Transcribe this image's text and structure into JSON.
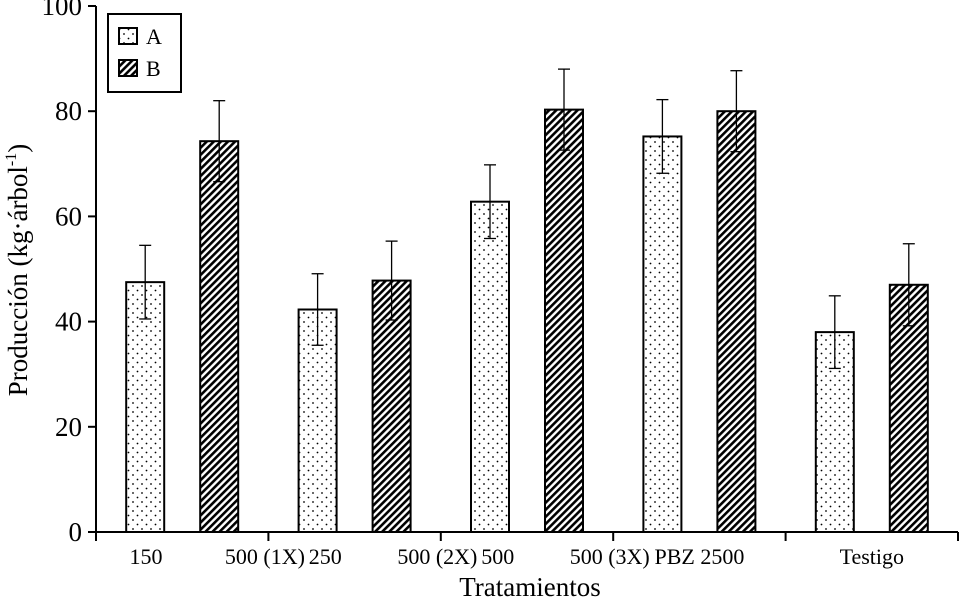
{
  "chart_data": {
    "type": "bar",
    "title": "",
    "xlabel": "Tratamientos",
    "ylabel": "Producción (kg·árbol",
    "ylabel_sup": "-1",
    "ylabel_close": ")",
    "ylim": [
      0,
      100
    ],
    "yticks": [
      0,
      20,
      40,
      60,
      80,
      100
    ],
    "grid": false,
    "legend_position": "top-left",
    "categories": [
      "150",
      "500 (1X)",
      "250",
      "500 (2X)",
      "500",
      "500 (3X)",
      "PBZ 2500",
      "Testigo"
    ],
    "groups": [
      {
        "bars": [
          {
            "series": "A",
            "value": 47.5,
            "error": 7
          },
          {
            "series": "B",
            "value": 74.3,
            "error": 7.7
          }
        ]
      },
      {
        "bars": [
          {
            "series": "A",
            "value": 42.3,
            "error": 6.8
          },
          {
            "series": "B",
            "value": 47.8,
            "error": 7.5
          }
        ]
      },
      {
        "bars": [
          {
            "series": "A",
            "value": 62.8,
            "error": 7
          },
          {
            "series": "B",
            "value": 80.3,
            "error": 7.7
          }
        ]
      },
      {
        "bars": [
          {
            "series": "A",
            "value": 75.2,
            "error": 7
          },
          {
            "series": "B",
            "value": 80.0,
            "error": 7.7
          }
        ]
      },
      {
        "bars": [
          {
            "series": "A",
            "value": 38.0,
            "error": 6.9
          },
          {
            "series": "B",
            "value": 47.0,
            "error": 7.8
          }
        ]
      }
    ],
    "series": [
      {
        "name": "A",
        "pattern": "dots"
      },
      {
        "name": "B",
        "pattern": "hatch"
      }
    ]
  }
}
